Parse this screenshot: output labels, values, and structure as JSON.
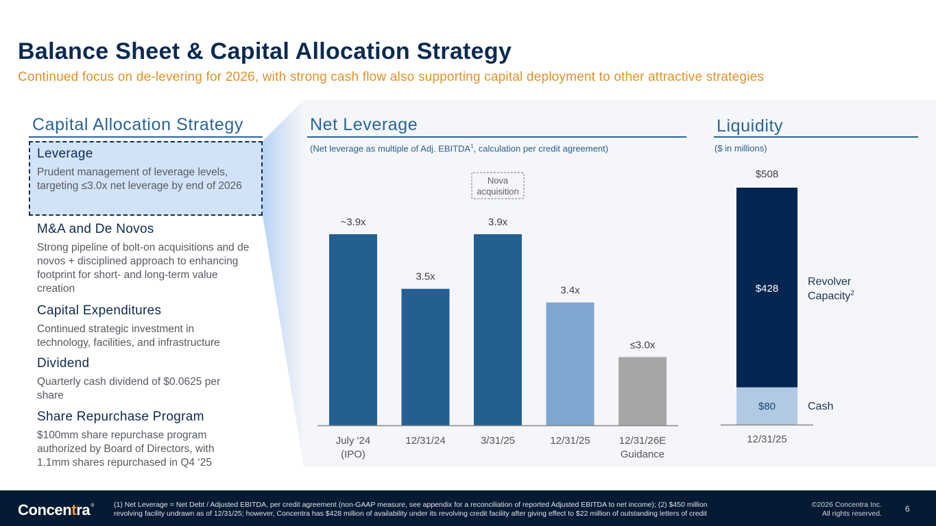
{
  "header": {
    "title": "Balance Sheet & Capital Allocation Strategy",
    "subtitle": "Continued focus on de-levering for 2026, with strong cash flow also supporting capital deployment to other attractive strategies"
  },
  "strategy": {
    "heading": "Capital Allocation Strategy",
    "items": [
      {
        "title": "Leverage",
        "body": "Prudent management of leverage levels, targeting ≤3.0x net leverage by end of 2026",
        "highlighted": true
      },
      {
        "title": "M&A and De Novos",
        "body": "Strong pipeline of bolt-on acquisitions and de novos + disciplined approach to enhancing footprint for short- and long-term value creation"
      },
      {
        "title": "Capital Expenditures",
        "body": "Continued strategic investment in technology, facilities, and infrastructure"
      },
      {
        "title": "Dividend",
        "body": "Quarterly cash dividend of $0.0625 per share"
      },
      {
        "title": "Share Repurchase Program",
        "body": "$100mm share repurchase program authorized by Board of Directors, with 1.1mm shares repurchased in Q4 ‘25"
      }
    ]
  },
  "net_leverage": {
    "heading": "Net Leverage",
    "note_prefix": "(Net leverage as multiple of Adj. EBITDA",
    "note_sup": "1",
    "note_suffix": ", calculation per credit agreement)"
  },
  "liquidity": {
    "heading": "Liquidity",
    "note": "($ in millions)"
  },
  "chart_data": [
    {
      "type": "bar",
      "title": "Net Leverage",
      "subtitle": "(Net leverage as multiple of Adj. EBITDA1, calculation per credit agreement)",
      "categories": [
        [
          "July '24",
          "(IPO)"
        ],
        [
          "12/31/24"
        ],
        [
          "3/31/25"
        ],
        [
          "12/31/25"
        ],
        [
          "12/31/26E",
          "Guidance"
        ]
      ],
      "values": [
        3.9,
        3.5,
        3.9,
        3.4,
        3.0
      ],
      "data_labels": [
        "~3.9x",
        "3.5x",
        "3.9x",
        "3.4x",
        "≤3.0x"
      ],
      "colors": [
        "#235f91",
        "#235f91",
        "#235f91",
        "#7fa6cf",
        "#a6a6a6"
      ],
      "annotation": {
        "text": [
          "Nova",
          "acquisition"
        ],
        "category_index": 2
      },
      "ylim": [
        2.5,
        3.95
      ],
      "xlabel": "",
      "ylabel": "",
      "grid": false
    },
    {
      "type": "bar",
      "stacked": true,
      "title": "Liquidity",
      "subtitle": "($ in millions)",
      "categories": [
        "12/31/25"
      ],
      "series": [
        {
          "name": "Cash",
          "values": [
            80
          ],
          "label": "$80",
          "color": "#b2c9e4",
          "label_color": "#1e4570"
        },
        {
          "name": "Revolver Capacity",
          "sup": "2",
          "values": [
            428
          ],
          "label": "$428",
          "color": "#02264f",
          "label_color": "#ffffff"
        }
      ],
      "total_label": "$508",
      "ylim": [
        0,
        508
      ],
      "grid": false
    }
  ],
  "footer": {
    "logo_text_a": "Concen",
    "logo_text_plus": "t",
    "logo_text_b": "ra",
    "logo_mark": "®",
    "footnote_line1": "(1) Net Leverage = Net Debt / Adjusted EBITDA, per credit agreement (non-GAAP measure, see appendix for a reconciliation of reported Adjusted EBITDA to net income); (2) $450 million",
    "footnote_line2": "revolving facility undrawn as of 12/31/25; however, Concentra has $428 million of availability under its revolving credit facility after giving effect to $22 million of outstanding letters of credit",
    "copyright_line1": "©2026 Concentra Inc.",
    "copyright_line2": "All rights reserved.",
    "page_number": "6"
  }
}
